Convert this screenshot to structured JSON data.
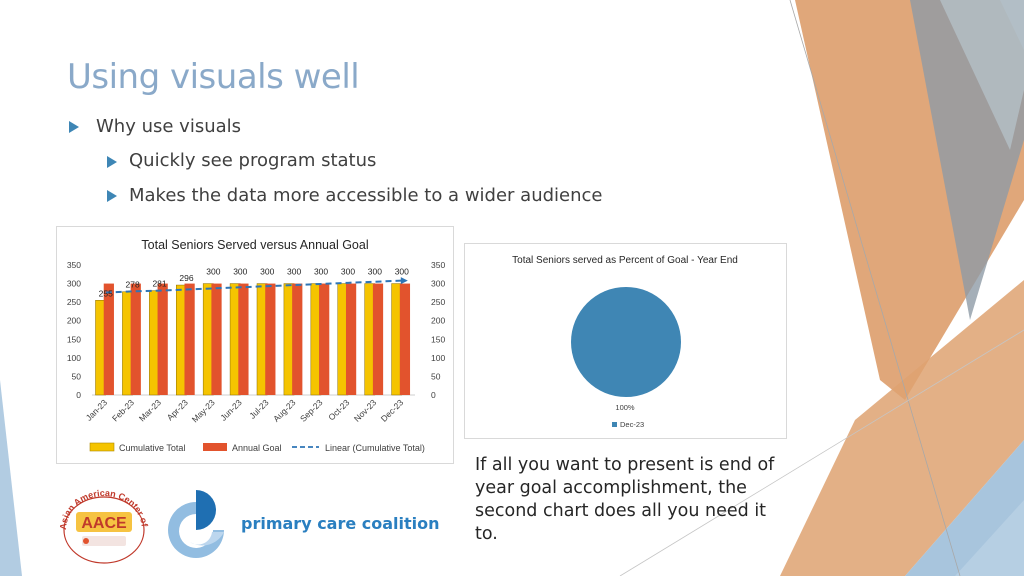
{
  "slide": {
    "title": "Using visuals well",
    "bullets": [
      {
        "text": "Why use visuals",
        "level": 1
      },
      {
        "text": "Quickly see program status",
        "level": 2
      },
      {
        "text": "Makes the data more accessible to a wider audience",
        "level": 2
      }
    ],
    "note": "If all you want to present is end of year goal accomplishment, the second chart does all you need it to."
  },
  "logos": {
    "aace": {
      "main": "AACE",
      "ring": "Asian American Center of Excellence"
    },
    "pcc": {
      "text": "primary care coalition"
    }
  },
  "colors": {
    "accent": "#3e86b5",
    "bar_cumulative": "#f5c400",
    "bar_goal": "#e2532d",
    "pie": "#3f86b4",
    "pcc_text": "#2a7fc0"
  },
  "chart_data": [
    {
      "type": "bar",
      "title": "Total Seniors Served versus Annual Goal",
      "categories": [
        "Jan-23",
        "Feb-23",
        "Mar-23",
        "Apr-23",
        "May-23",
        "Jun-23",
        "Jul-23",
        "Aug-23",
        "Sep-23",
        "Oct-23",
        "Nov-23",
        "Dec-23"
      ],
      "series": [
        {
          "name": "Cumulative Total",
          "values": [
            255,
            278,
            281,
            296,
            300,
            300,
            300,
            300,
            300,
            300,
            300,
            300
          ]
        },
        {
          "name": "Annual Goal",
          "values": [
            300,
            300,
            300,
            300,
            300,
            300,
            300,
            300,
            300,
            300,
            300,
            300
          ]
        },
        {
          "name": "Linear (Cumulative Total)",
          "values": [
            276,
            279,
            281,
            284,
            287,
            290,
            293,
            296,
            299,
            302,
            305,
            308
          ]
        }
      ],
      "data_labels": [
        "255",
        "278",
        "281",
        "296",
        "300",
        "300",
        "300",
        "300",
        "300",
        "300",
        "300",
        "300"
      ],
      "ylim": [
        0,
        350
      ],
      "yticks": [
        "0",
        "50",
        "100",
        "150",
        "200",
        "250",
        "300",
        "350"
      ],
      "secondary_axis": true,
      "legend": "bottom",
      "grid": false
    },
    {
      "type": "pie",
      "title": "Total Seniors served as Percent of Goal - Year End",
      "categories": [
        "Dec-23"
      ],
      "values": [
        100
      ],
      "data_labels": [
        "100%"
      ],
      "legend": "bottom"
    }
  ]
}
